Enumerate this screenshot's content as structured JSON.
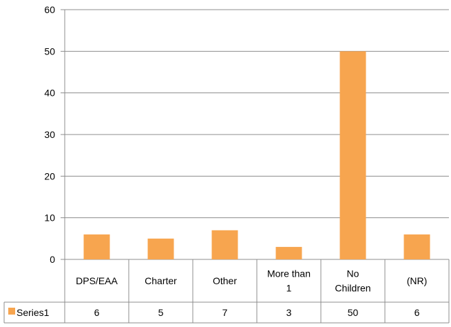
{
  "chart_data": {
    "type": "bar",
    "categories": [
      [
        "DPS/EAA"
      ],
      [
        "Charter"
      ],
      [
        "Other"
      ],
      [
        "More than",
        "1"
      ],
      [
        "No",
        "Children"
      ],
      [
        "(NR)"
      ]
    ],
    "series": [
      {
        "name": "Series1",
        "values": [
          6,
          5,
          7,
          3,
          50,
          6
        ],
        "color": "#F7A54F"
      }
    ],
    "ylim": [
      0,
      60
    ],
    "yticks": [
      0,
      10,
      20,
      30,
      40,
      50,
      60
    ],
    "grid": true,
    "legend": "data-table-left",
    "data_table": true
  }
}
